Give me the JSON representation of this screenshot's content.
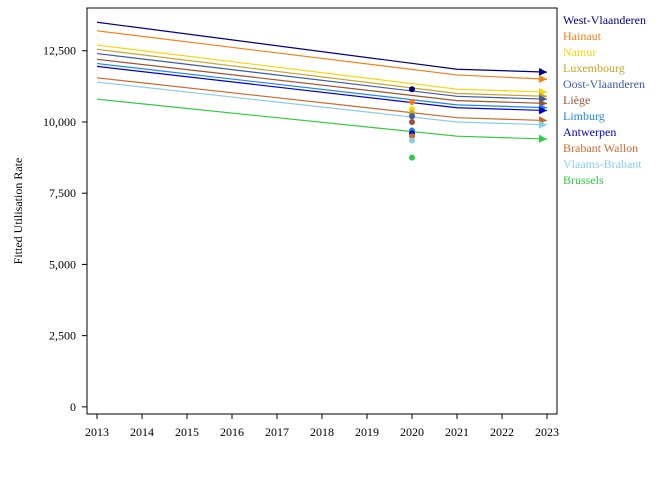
{
  "chart_data": {
    "type": "line",
    "title": "",
    "xlabel": "",
    "ylabel": "Fitted Utilisation Rate",
    "x": [
      2013,
      2014,
      2015,
      2016,
      2017,
      2018,
      2019,
      2020,
      2021,
      2022,
      2023
    ],
    "x_tick_labels": [
      "2013",
      "2014",
      "2015",
      "2016",
      "2017",
      "2018",
      "2019",
      "2020",
      "2021",
      "2022",
      "2023"
    ],
    "xlim": [
      2013,
      2023
    ],
    "ylim": [
      -250,
      14000
    ],
    "y_ticks": [
      0,
      2500,
      5000,
      7500,
      10000,
      12500
    ],
    "y_tick_labels": [
      "0",
      "2,500",
      "5,000",
      "7,500",
      "10,000",
      "12,500"
    ],
    "grid": false,
    "legend_position": "right",
    "series": [
      {
        "name": "West-Vlaanderen",
        "color": "#00007f",
        "x": [
          2013,
          2021,
          2023
        ],
        "values": [
          13500,
          11850,
          11750
        ],
        "point": 11150
      },
      {
        "name": "Hainaut",
        "color": "#f57f18",
        "x": [
          2013,
          2021,
          2023
        ],
        "values": [
          13200,
          11650,
          11500
        ],
        "point": 10700
      },
      {
        "name": "Namur",
        "color": "#f5d60a",
        "x": [
          2013,
          2021,
          2023
        ],
        "values": [
          12700,
          11150,
          11050
        ],
        "point": 10450
      },
      {
        "name": "Luxembourg",
        "color": "#c9a227",
        "x": [
          2013,
          2021,
          2023
        ],
        "values": [
          12550,
          11000,
          10900
        ],
        "point": 10300
      },
      {
        "name": "Oost-Vlaanderen",
        "color": "#3a5ca8",
        "x": [
          2013,
          2021,
          2023
        ],
        "values": [
          12400,
          10900,
          10800
        ],
        "point": 10200
      },
      {
        "name": "Liège",
        "color": "#a0522d",
        "x": [
          2013,
          2021,
          2023
        ],
        "values": [
          12200,
          10750,
          10650
        ],
        "point": 10000
      },
      {
        "name": "Limburg",
        "color": "#1e88e5",
        "x": [
          2013,
          2021,
          2023
        ],
        "values": [
          12050,
          10600,
          10500
        ],
        "point": 9700
      },
      {
        "name": "Antwerpen",
        "color": "#0000cc",
        "x": [
          2013,
          2021,
          2023
        ],
        "values": [
          11950,
          10500,
          10400
        ],
        "point": 9600
      },
      {
        "name": "Brabant Wallon",
        "color": "#c86a28",
        "x": [
          2013,
          2021,
          2023
        ],
        "values": [
          11550,
          10150,
          10050
        ],
        "point": 9500
      },
      {
        "name": "Vlaams-Brabant",
        "color": "#87ceeb",
        "x": [
          2013,
          2021,
          2023
        ],
        "values": [
          11400,
          10000,
          9900
        ],
        "point": 9350
      },
      {
        "name": "Brussels",
        "color": "#2ecc40",
        "x": [
          2013,
          2021,
          2023
        ],
        "values": [
          10800,
          9500,
          9400
        ],
        "point": 8750
      }
    ],
    "point_x": 2020
  }
}
